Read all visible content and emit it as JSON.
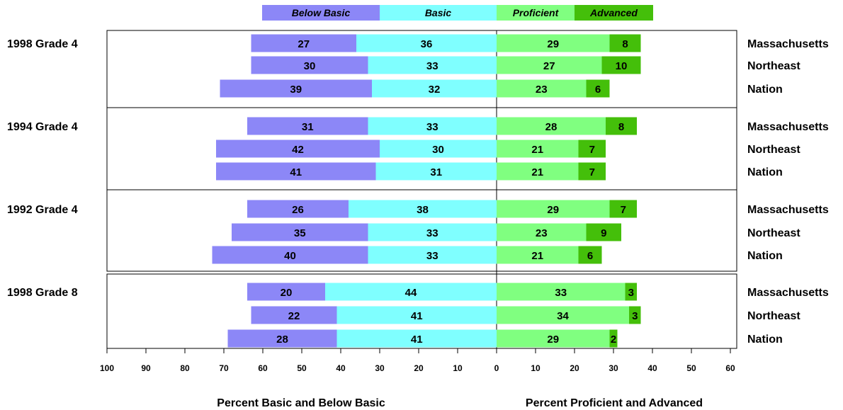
{
  "chart_data": {
    "type": "bar",
    "orientation": "horizontal",
    "stacked": "diverging",
    "legend": {
      "placement": "top",
      "items": [
        {
          "name": "Below Basic",
          "color": "#8C87F7"
        },
        {
          "name": "Basic",
          "color": "#7FFFFF"
        },
        {
          "name": "Proficient",
          "color": "#80FF80"
        },
        {
          "name": "Advanced",
          "color": "#44BF0A"
        }
      ]
    },
    "series": [
      "Below Basic",
      "Basic",
      "Proficient",
      "Advanced"
    ],
    "groups": [
      {
        "label": "1998 Grade 4",
        "rows": [
          {
            "region": "Massachusetts",
            "values": [
              27,
              36,
              29,
              8
            ]
          },
          {
            "region": "Northeast",
            "values": [
              30,
              33,
              27,
              10
            ]
          },
          {
            "region": "Nation",
            "values": [
              39,
              32,
              23,
              6
            ]
          }
        ]
      },
      {
        "label": "1994 Grade 4",
        "rows": [
          {
            "region": "Massachusetts",
            "values": [
              31,
              33,
              28,
              8
            ]
          },
          {
            "region": "Northeast",
            "values": [
              42,
              30,
              21,
              7
            ]
          },
          {
            "region": "Nation",
            "values": [
              41,
              31,
              21,
              7
            ]
          }
        ]
      },
      {
        "label": "1992 Grade 4",
        "rows": [
          {
            "region": "Massachusetts",
            "values": [
              26,
              38,
              29,
              7
            ]
          },
          {
            "region": "Northeast",
            "values": [
              35,
              33,
              23,
              9
            ]
          },
          {
            "region": "Nation",
            "values": [
              40,
              33,
              21,
              6
            ]
          }
        ]
      },
      {
        "label": "1998 Grade 8",
        "rows": [
          {
            "region": "Massachusetts",
            "values": [
              20,
              44,
              33,
              3
            ]
          },
          {
            "region": "Northeast",
            "values": [
              22,
              41,
              34,
              3
            ]
          },
          {
            "region": "Nation",
            "values": [
              28,
              41,
              29,
              2
            ]
          }
        ]
      }
    ],
    "x_axis_left": {
      "title": "Percent Basic and Below Basic",
      "range": [
        100,
        0
      ],
      "ticks": [
        100,
        90,
        80,
        70,
        60,
        50,
        40,
        30,
        20,
        10,
        0
      ]
    },
    "x_axis_right": {
      "title": "Percent Proficient and Advanced",
      "range": [
        0,
        60
      ],
      "ticks": [
        10,
        20,
        30,
        40,
        50,
        60
      ]
    },
    "grid": false
  }
}
